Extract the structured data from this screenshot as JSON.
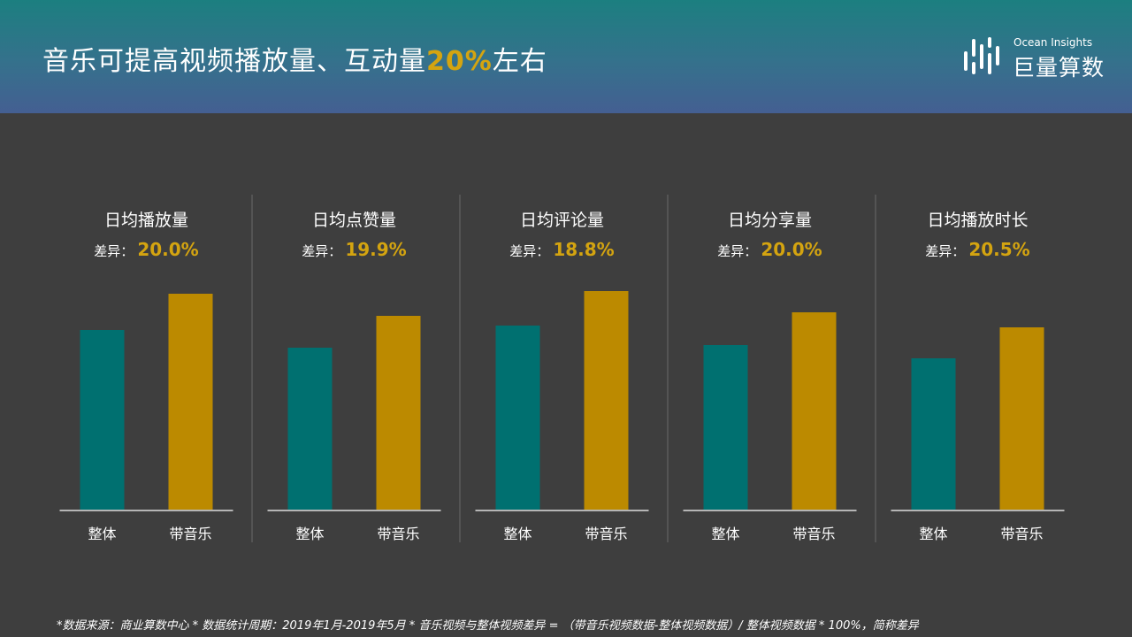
{
  "header": {
    "title_main": "音乐可提高视频播放量、互动量",
    "title_highlight": "20%",
    "title_tail": "左右"
  },
  "logo": {
    "subtitle": "Ocean Insights",
    "name": "巨量算数"
  },
  "colors": {
    "header_top": "#1c7f80",
    "header_bottom": "#445f92",
    "background": "#3e3e3e",
    "series_overall": "#007070",
    "series_music": "#bc8a00",
    "highlight": "#d4a410"
  },
  "chart_data": [
    {
      "type": "bar",
      "title": "日均播放量",
      "diff_label": "差异：",
      "diff_value": "20.0%",
      "categories": [
        "整体",
        "带音乐"
      ],
      "values": [
        203,
        244
      ],
      "ylim": [
        0,
        260
      ]
    },
    {
      "type": "bar",
      "title": "日均点赞量",
      "diff_label": "差异：",
      "diff_value": "19.9%",
      "categories": [
        "整体",
        "带音乐"
      ],
      "values": [
        183,
        219
      ],
      "ylim": [
        0,
        260
      ]
    },
    {
      "type": "bar",
      "title": "日均评论量",
      "diff_label": "差异：",
      "diff_value": "18.8%",
      "categories": [
        "整体",
        "带音乐"
      ],
      "values": [
        208,
        247
      ],
      "ylim": [
        0,
        260
      ]
    },
    {
      "type": "bar",
      "title": "日均分享量",
      "diff_label": "差异：",
      "diff_value": "20.0%",
      "categories": [
        "整体",
        "带音乐"
      ],
      "values": [
        186,
        223
      ],
      "ylim": [
        0,
        260
      ]
    },
    {
      "type": "bar",
      "title": "日均播放时长",
      "diff_label": "差异：",
      "diff_value": "20.5%",
      "categories": [
        "整体",
        "带音乐"
      ],
      "values": [
        171,
        206
      ],
      "ylim": [
        0,
        260
      ]
    }
  ],
  "footnote": "*数据来源：商业算数中心 * 数据统计周期：2019年1月-2019年5月 * 音乐视频与整体视频差异 = （带音乐视频数据-整体视频数据）/ 整体视频数据 * 100%，简称差异"
}
